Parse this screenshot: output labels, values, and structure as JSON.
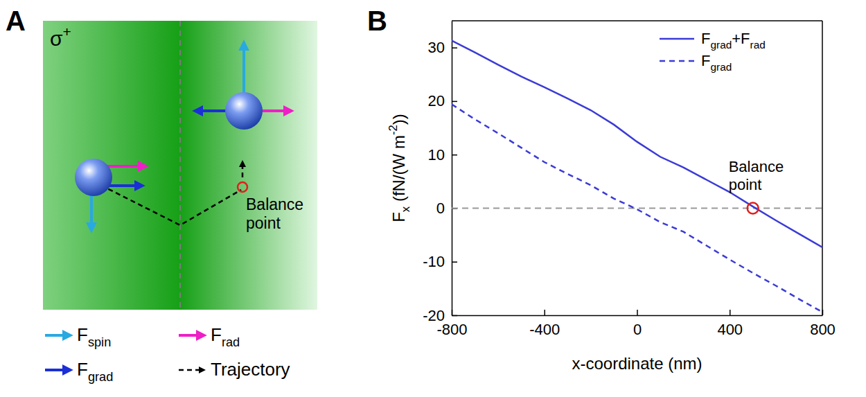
{
  "chart_data": {
    "type": "line",
    "panel": "B",
    "x_label": "x-coordinate (nm)",
    "y_label": "Fx (fN/(W m-2))",
    "x": [
      -800,
      -700,
      -600,
      -500,
      -400,
      -300,
      -200,
      -100,
      0,
      100,
      200,
      300,
      400,
      500,
      600,
      700,
      800
    ],
    "series": [
      {
        "name": "Fgrad+Frad",
        "color": "#3b3bd6",
        "line_style": "solid",
        "values": [
          31.3,
          29.1,
          26.8,
          24.6,
          22.6,
          20.5,
          18.3,
          15.6,
          12.4,
          9.6,
          7.6,
          5.3,
          3.0,
          0.3,
          -2.3,
          -4.8,
          -7.3
        ]
      },
      {
        "name": "Fgrad",
        "color": "#3b3bd6",
        "line_style": "dashed",
        "values": [
          19.4,
          16.6,
          14.0,
          11.3,
          8.6,
          6.4,
          4.3,
          1.8,
          -0.2,
          -2.6,
          -4.4,
          -7.0,
          -9.6,
          -12.1,
          -14.5,
          -17.0,
          -19.4
        ]
      }
    ],
    "xlim": [
      -800,
      800
    ],
    "xticks": [
      -800,
      -400,
      0,
      400,
      800
    ],
    "ylim": [
      -20,
      35
    ],
    "yticks": [
      -20,
      -10,
      0,
      10,
      20,
      30
    ],
    "hline": 0,
    "annotations": [
      {
        "text": "Balance point",
        "x": 500,
        "y": 0,
        "color": "#e0201f"
      }
    ],
    "legend": "upper right"
  },
  "diagram": {
    "panel": "A",
    "polarization": "σ+",
    "balance_label": "Balance point",
    "legend": [
      {
        "label": "Fspin",
        "color": "#29a9e1"
      },
      {
        "label": "Frad",
        "color": "#ee1fc6"
      },
      {
        "label": "Fgrad",
        "color": "#1a2fd6"
      },
      {
        "label": "Trajectory",
        "color": "#000000"
      }
    ]
  }
}
